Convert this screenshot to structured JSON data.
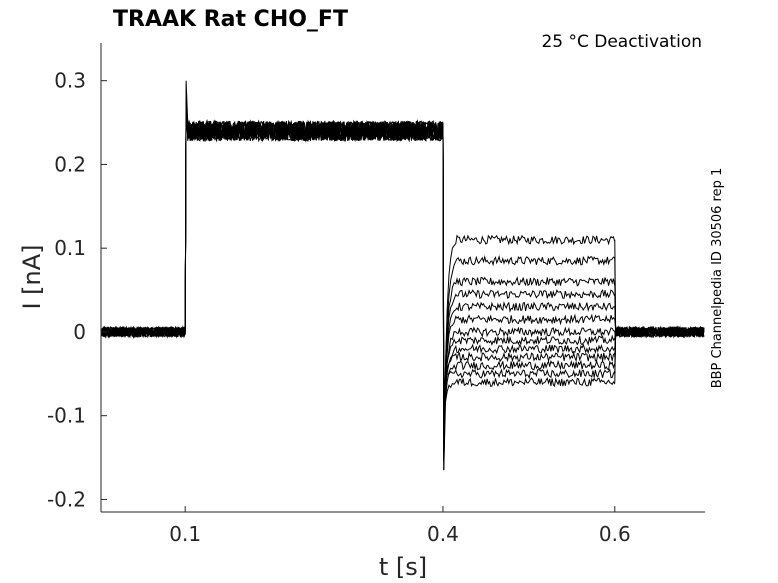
{
  "chart_data": {
    "type": "line",
    "title": "TRAAK  Rat  CHO_FT",
    "annotation": "25 °C  Deactivation",
    "side_note": "BBP Channelpedia ID 30506 rep 1",
    "xlabel": "t [s]",
    "ylabel": "I [nA]",
    "xlim": [
      0.002,
      0.705
    ],
    "ylim": [
      -0.215,
      0.345
    ],
    "xticks": [
      0.1,
      0.4,
      0.6
    ],
    "xtick_labels": [
      "0.1",
      "0.4",
      "0.6"
    ],
    "yticks": [
      -0.2,
      -0.1,
      0,
      0.1,
      0.2,
      0.3
    ],
    "ytick_labels": [
      "-0.2",
      "-0.1",
      "0",
      "0.1",
      "0.2",
      "0.3"
    ],
    "grid": false,
    "legend": "none",
    "line_color": "#000000",
    "protocol": {
      "baseline_end_s": 0.1,
      "activation_end_s": 0.4,
      "test_end_s": 0.6,
      "baseline_current_nA": 0.0,
      "activation_current_nA": 0.24,
      "activation_peak_nA": 0.3,
      "tail_min_nA": -0.165
    },
    "series": [
      {
        "test_current_nA": 0.11
      },
      {
        "test_current_nA": 0.085
      },
      {
        "test_current_nA": 0.06
      },
      {
        "test_current_nA": 0.045
      },
      {
        "test_current_nA": 0.03
      },
      {
        "test_current_nA": 0.015
      },
      {
        "test_current_nA": 0.0
      },
      {
        "test_current_nA": -0.01
      },
      {
        "test_current_nA": -0.02
      },
      {
        "test_current_nA": -0.03
      },
      {
        "test_current_nA": -0.04
      },
      {
        "test_current_nA": -0.05
      },
      {
        "test_current_nA": -0.06
      }
    ]
  }
}
